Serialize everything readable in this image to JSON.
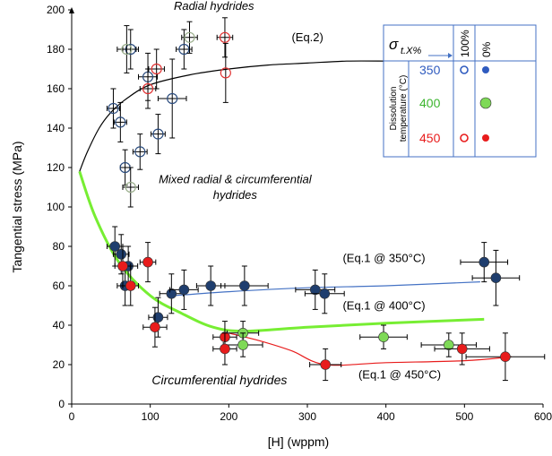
{
  "chart_data": {
    "type": "scatter",
    "xlabel": "[H] (wppm)",
    "ylabel": "Tangential stress (MPa)",
    "xlim": [
      0,
      600
    ],
    "ylim": [
      0,
      200
    ],
    "xticks": [
      0,
      100,
      200,
      300,
      400,
      500,
      600
    ],
    "yticks": [
      0,
      20,
      40,
      60,
      80,
      100,
      120,
      140,
      160,
      180,
      200
    ],
    "grid": false,
    "series": [
      {
        "group": "350",
        "fraction": "100%",
        "marker": "open-circle",
        "color": "#2b4c7e",
        "points": [
          {
            "x": 53,
            "y": 150,
            "xerr": 8,
            "yerr": 10
          },
          {
            "x": 62,
            "y": 143,
            "xerr": 8,
            "yerr": 10
          },
          {
            "x": 68,
            "y": 120,
            "xerr": 6,
            "yerr": 9
          },
          {
            "x": 75,
            "y": 180,
            "xerr": 10,
            "yerr": 10
          },
          {
            "x": 87,
            "y": 128,
            "xerr": 9,
            "yerr": 9
          },
          {
            "x": 97,
            "y": 166,
            "xerr": 12,
            "yerr": 12
          },
          {
            "x": 110,
            "y": 137,
            "xerr": 9,
            "yerr": 10
          },
          {
            "x": 128,
            "y": 155,
            "xerr": 18,
            "yerr": 20
          },
          {
            "x": 143,
            "y": 180,
            "xerr": 10,
            "yerr": 10
          }
        ]
      },
      {
        "group": "400",
        "fraction": "100%",
        "marker": "open-circle",
        "color": "#9aae8c",
        "points": [
          {
            "x": 70,
            "y": 180,
            "xerr": 12,
            "yerr": 12
          },
          {
            "x": 75,
            "y": 110,
            "xerr": 10,
            "yerr": 10
          },
          {
            "x": 150,
            "y": 186,
            "xerr": 10,
            "yerr": 8
          }
        ]
      },
      {
        "group": "450",
        "fraction": "100%",
        "marker": "open-circle",
        "color": "#e03030",
        "points": [
          {
            "x": 97,
            "y": 160,
            "xerr": 10,
            "yerr": 10
          },
          {
            "x": 108,
            "y": 170,
            "xerr": 10,
            "yerr": 10
          },
          {
            "x": 195,
            "y": 186,
            "xerr": 10,
            "yerr": 10
          },
          {
            "x": 196,
            "y": 168,
            "xerr": 0,
            "yerr": 15
          }
        ]
      },
      {
        "group": "350",
        "fraction": "0%",
        "marker": "filled-circle",
        "color": "#1f3e6e",
        "points": [
          {
            "x": 55,
            "y": 80,
            "xerr": 10,
            "yerr": 10
          },
          {
            "x": 63,
            "y": 76,
            "xerr": 10,
            "yerr": 10
          },
          {
            "x": 72,
            "y": 70,
            "xerr": 12,
            "yerr": 10
          },
          {
            "x": 68,
            "y": 60,
            "xerr": 10,
            "yerr": 10
          },
          {
            "x": 110,
            "y": 44,
            "xerr": 12,
            "yerr": 10
          },
          {
            "x": 127,
            "y": 56,
            "xerr": 15,
            "yerr": 10
          },
          {
            "x": 143,
            "y": 58,
            "xerr": 18,
            "yerr": 10
          },
          {
            "x": 177,
            "y": 60,
            "xerr": 18,
            "yerr": 10
          },
          {
            "x": 220,
            "y": 60,
            "xerr": 30,
            "yerr": 10
          },
          {
            "x": 310,
            "y": 58,
            "xerr": 25,
            "yerr": 10
          },
          {
            "x": 322,
            "y": 56,
            "xerr": 25,
            "yerr": 10
          },
          {
            "x": 525,
            "y": 72,
            "xerr": 30,
            "yerr": 10
          },
          {
            "x": 540,
            "y": 64,
            "xerr": 30,
            "yerr": 14
          }
        ]
      },
      {
        "group": "400",
        "fraction": "0%",
        "marker": "filled-circle",
        "color": "#7ed957",
        "points": [
          {
            "x": 218,
            "y": 36,
            "xerr": 20,
            "yerr": 6
          },
          {
            "x": 218,
            "y": 30,
            "xerr": 25,
            "yerr": 6
          },
          {
            "x": 397,
            "y": 34,
            "xerr": 30,
            "yerr": 6
          },
          {
            "x": 480,
            "y": 30,
            "xerr": 35,
            "yerr": 6
          }
        ]
      },
      {
        "group": "450",
        "fraction": "0%",
        "marker": "filled-circle",
        "color": "#e81c1c",
        "points": [
          {
            "x": 65,
            "y": 70,
            "xerr": 10,
            "yerr": 10
          },
          {
            "x": 75,
            "y": 60,
            "xerr": 10,
            "yerr": 10
          },
          {
            "x": 97,
            "y": 72,
            "xerr": 10,
            "yerr": 10
          },
          {
            "x": 106,
            "y": 39,
            "xerr": 15,
            "yerr": 10
          },
          {
            "x": 195,
            "y": 34,
            "xerr": 15,
            "yerr": 8
          },
          {
            "x": 195,
            "y": 28,
            "xerr": 15,
            "yerr": 8
          },
          {
            "x": 323,
            "y": 20,
            "xerr": 20,
            "yerr": 8
          },
          {
            "x": 497,
            "y": 28,
            "xerr": 35,
            "yerr": 8
          },
          {
            "x": 552,
            "y": 24,
            "xerr": 50,
            "yerr": 12
          }
        ]
      }
    ],
    "curves": [
      {
        "name": "(Eq.2)",
        "color": "#000000",
        "points": [
          [
            10,
            118
          ],
          [
            20,
            128
          ],
          [
            35,
            140
          ],
          [
            50,
            148
          ],
          [
            70,
            155
          ],
          [
            100,
            162
          ],
          [
            150,
            167
          ],
          [
            200,
            170
          ],
          [
            250,
            172
          ],
          [
            300,
            173
          ],
          [
            350,
            174
          ],
          [
            400,
            174
          ]
        ]
      },
      {
        "name": "(Eq.1 @ 350°C)",
        "color": "#4472c4",
        "points": [
          [
            130,
            55
          ],
          [
            200,
            57
          ],
          [
            300,
            59
          ],
          [
            400,
            60
          ],
          [
            520,
            62
          ]
        ]
      },
      {
        "name": "(Eq.1 @ 400°C)",
        "color": "#77ee33",
        "points": [
          [
            10,
            118
          ],
          [
            30,
            95
          ],
          [
            60,
            72
          ],
          [
            100,
            55
          ],
          [
            140,
            46
          ],
          [
            180,
            39
          ],
          [
            220,
            37
          ],
          [
            300,
            39
          ],
          [
            400,
            41
          ],
          [
            525,
            43
          ]
        ]
      },
      {
        "name": "(Eq.1 @ 450°C)",
        "color": "#e81c1c",
        "points": [
          [
            200,
            36
          ],
          [
            240,
            32
          ],
          [
            280,
            27
          ],
          [
            323,
            20
          ],
          [
            400,
            21
          ],
          [
            500,
            22
          ],
          [
            560,
            24
          ]
        ]
      }
    ],
    "annotations": [
      {
        "id": "radial",
        "text": "Radial hydrides",
        "x": 130,
        "y": 200
      },
      {
        "id": "mixed1",
        "text": "Mixed radial & circumferential",
        "x": 208,
        "y": 112
      },
      {
        "id": "mixed2",
        "text": "hydrides",
        "x": 208,
        "y": 104
      },
      {
        "id": "circ",
        "text": "Circumferential hydrides",
        "x": 102,
        "y": 10
      },
      {
        "id": "eq2",
        "text": "(Eq.2)",
        "x": 280,
        "y": 184
      },
      {
        "id": "eq350",
        "text": "(Eq.1 @ 350°C)",
        "x": 345,
        "y": 72
      },
      {
        "id": "eq400",
        "text": "(Eq.1 @ 400°C)",
        "x": 345,
        "y": 48
      },
      {
        "id": "eq450",
        "text": "(Eq.1 @ 450°C)",
        "x": 365,
        "y": 13
      }
    ],
    "legend": {
      "placement": "top-right",
      "header": "σt.X%",
      "columns": [
        "100%",
        "0%"
      ],
      "side_label": [
        "Dissolution",
        "temperature (°C)"
      ],
      "rows": [
        {
          "label": "350",
          "color": "#2f5bbf",
          "open": true,
          "filled": true
        },
        {
          "label": "400",
          "color": "#3cb52e",
          "open": false,
          "filled": true
        },
        {
          "label": "450",
          "color": "#e81c1c",
          "open": true,
          "filled": true
        }
      ]
    }
  }
}
